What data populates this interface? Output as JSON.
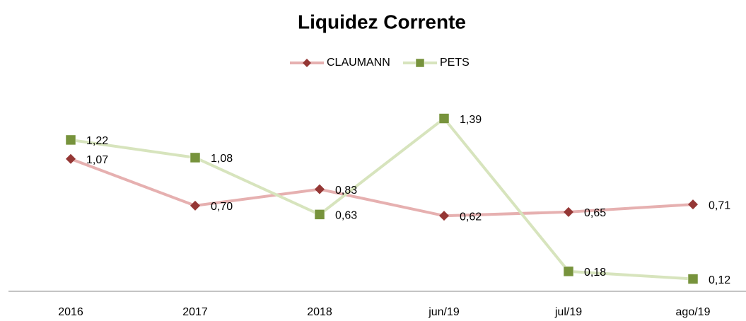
{
  "chart_data": {
    "type": "line",
    "title": "Liquidez Corrente",
    "categories": [
      "2016",
      "2017",
      "2018",
      "jun/19",
      "jul/19",
      "ago/19"
    ],
    "series": [
      {
        "name": "CLAUMANN",
        "color": "#953735",
        "line_color": "#e6b0b0",
        "marker": "diamond",
        "values": [
          1.07,
          0.7,
          0.83,
          0.62,
          0.65,
          0.71
        ],
        "value_labels": [
          "1,07",
          "0,70",
          "0,83",
          "0,62",
          "0,65",
          "0,71"
        ]
      },
      {
        "name": "PETS",
        "color": "#77933c",
        "line_color": "#d7e4bd",
        "marker": "square",
        "values": [
          1.22,
          1.08,
          0.63,
          1.39,
          0.18,
          0.12
        ],
        "value_labels": [
          "1,22",
          "1,08",
          "0,63",
          "1,39",
          "0,18",
          "0,12"
        ]
      }
    ],
    "ylim": [
      0,
      1.6
    ],
    "legend": "top"
  }
}
